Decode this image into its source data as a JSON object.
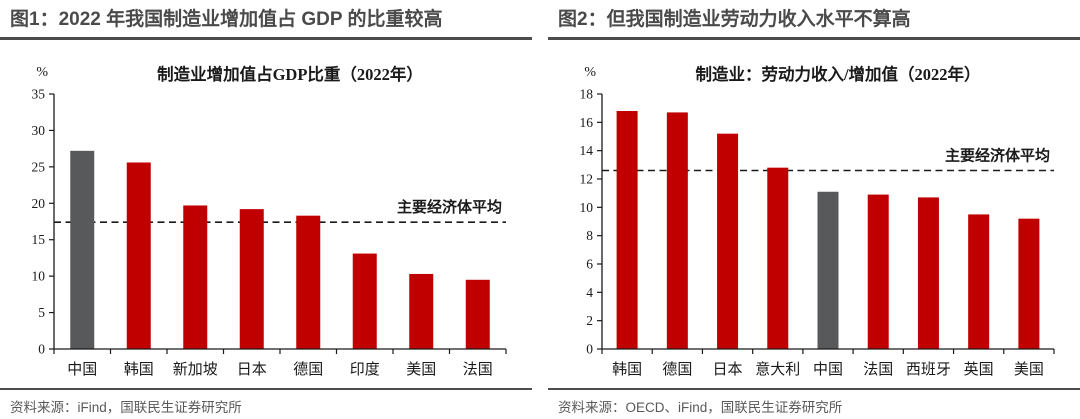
{
  "panels": [
    {
      "title": "图1：2022 年我国制造业增加值占 GDP 的比重较高",
      "source": "资料来源：iFind，国联民生证券研究所"
    },
    {
      "title": "图2：但我国制造业劳动力收入水平不算高",
      "source": "资料来源：OECD、iFind，国联民生证券研究所"
    }
  ],
  "chart_data": [
    {
      "type": "bar",
      "title": "制造业增加值占GDP比重（2022年）",
      "unit": "%",
      "categories": [
        "中国",
        "韩国",
        "新加坡",
        "日本",
        "德国",
        "印度",
        "美国",
        "法国"
      ],
      "values": [
        27.2,
        25.6,
        19.7,
        19.2,
        18.3,
        13.1,
        10.3,
        9.5
      ],
      "ylim": [
        0,
        35
      ],
      "yticks": [
        0,
        5,
        10,
        15,
        20,
        25,
        30,
        35
      ],
      "bar_color": "#C00000",
      "highlight_label": "中国",
      "highlight_color": "#58595B",
      "average_line": {
        "value": 17.4,
        "label": "主要经济体平均"
      },
      "grid": false,
      "legend": "none"
    },
    {
      "type": "bar",
      "title": "制造业：劳动力收入/增加值（2022年）",
      "unit": "%",
      "categories": [
        "韩国",
        "德国",
        "日本",
        "意大利",
        "中国",
        "法国",
        "西班牙",
        "英国",
        "美国"
      ],
      "values": [
        16.8,
        16.7,
        15.2,
        12.8,
        11.1,
        10.9,
        10.7,
        9.5,
        9.2
      ],
      "ylim": [
        0,
        18
      ],
      "yticks": [
        0,
        2,
        4,
        6,
        8,
        10,
        12,
        14,
        16,
        18
      ],
      "bar_color": "#C00000",
      "highlight_label": "中国",
      "highlight_color": "#58595B",
      "average_line": {
        "value": 12.6,
        "label": "主要经济体平均"
      },
      "grid": false,
      "legend": "none"
    }
  ]
}
